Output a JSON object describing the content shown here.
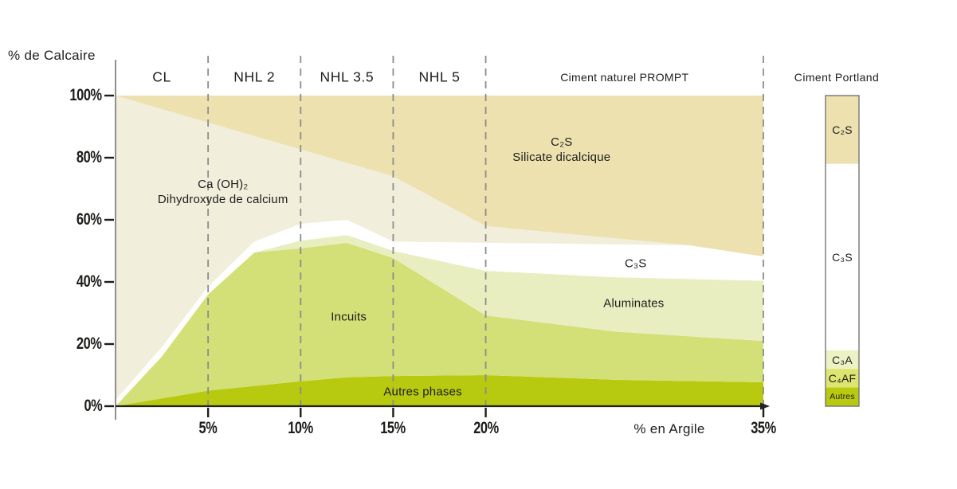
{
  "chart_data": {
    "type": "area",
    "title": "",
    "ylabel": "% de Calcaire",
    "xlabel": "% en Argile",
    "xlim": [
      0,
      35
    ],
    "ylim": [
      0,
      100
    ],
    "grid": "dashed-vertical",
    "legend_position": "none",
    "x_ticks": [
      {
        "value": 5,
        "label": "5%"
      },
      {
        "value": 10,
        "label": "10%"
      },
      {
        "value": 15,
        "label": "15%"
      },
      {
        "value": 20,
        "label": "20%"
      },
      {
        "value": 35,
        "label": "35%"
      }
    ],
    "y_ticks": [
      {
        "value": 100,
        "label": "100%"
      },
      {
        "value": 80,
        "label": "80%"
      },
      {
        "value": 60,
        "label": "60%"
      },
      {
        "value": 40,
        "label": "40%"
      },
      {
        "value": 20,
        "label": "20%"
      },
      {
        "value": 0,
        "label": "0%"
      }
    ],
    "gridlines_x": [
      5,
      10,
      15,
      20,
      35
    ],
    "zones": [
      {
        "label": "CL",
        "from": 0,
        "to": 5,
        "small": false
      },
      {
        "label": "NHL 2",
        "from": 5,
        "to": 10,
        "small": false
      },
      {
        "label": "NHL 3.5",
        "from": 10,
        "to": 15,
        "small": false
      },
      {
        "label": "NHL 5",
        "from": 15,
        "to": 20,
        "small": false
      },
      {
        "label": "Ciment naturel PROMPT",
        "from": 20,
        "to": 35,
        "small": true
      }
    ],
    "boundaries": {
      "base": [
        [
          0,
          0
        ],
        [
          35,
          0
        ]
      ],
      "autres_top": [
        [
          0,
          0
        ],
        [
          5,
          5
        ],
        [
          10,
          8
        ],
        [
          12.5,
          9.3
        ],
        [
          15,
          9.7
        ],
        [
          20,
          10
        ],
        [
          27,
          8.5
        ],
        [
          35,
          7.7
        ]
      ],
      "incuits_top": [
        [
          0,
          0
        ],
        [
          2.5,
          16
        ],
        [
          5,
          36
        ],
        [
          7.5,
          49.5
        ],
        [
          10,
          50.8
        ],
        [
          12.5,
          52.6
        ],
        [
          15,
          47.7
        ],
        [
          20,
          29.2
        ],
        [
          27,
          24
        ],
        [
          35,
          21
        ]
      ],
      "aluminates_top": [
        [
          0,
          0
        ],
        [
          2.5,
          16
        ],
        [
          5,
          36
        ],
        [
          7.5,
          49.5
        ],
        [
          10,
          53.3
        ],
        [
          12.5,
          55.1
        ],
        [
          15,
          50
        ],
        [
          20,
          43.6
        ],
        [
          27,
          41.5
        ],
        [
          35,
          40.4
        ]
      ],
      "c3s_top": [
        [
          0,
          2
        ],
        [
          2.5,
          19
        ],
        [
          5,
          38.5
        ],
        [
          7.5,
          53
        ],
        [
          10,
          58.7
        ],
        [
          12.5,
          60
        ],
        [
          15,
          53
        ],
        [
          20,
          52.6
        ],
        [
          31,
          51.8
        ],
        [
          35,
          48.2
        ]
      ],
      "caoh2_top": [
        [
          0,
          100
        ],
        [
          15,
          74
        ],
        [
          20,
          58
        ],
        [
          31,
          51.8
        ],
        [
          35,
          48.2
        ]
      ],
      "top": [
        [
          0,
          100
        ],
        [
          35,
          100
        ]
      ]
    },
    "layers": [
      {
        "name": "autres-phases",
        "label": "Autres phases",
        "lower": "base",
        "upper": "autres_top",
        "color": "#b8ca10"
      },
      {
        "name": "incuits",
        "label": "Incuits",
        "lower": "autres_top",
        "upper": "incuits_top",
        "color": "#d3e077"
      },
      {
        "name": "aluminates",
        "label": "Aluminates",
        "lower": "incuits_top",
        "upper": "aluminates_top",
        "color": "#e9eec1"
      },
      {
        "name": "c3s",
        "label": "C₃S",
        "lower": "aluminates_top",
        "upper": "c3s_top",
        "color": "#ffffff"
      },
      {
        "name": "ca-oh2",
        "label": "Ca (OH)₂ Dihydroxyde de calcium",
        "lower": "c3s_top",
        "upper": "caoh2_top",
        "color": "#f2eedc"
      },
      {
        "name": "c2s",
        "label": "C₂S Silicate dicalcique",
        "lower": "caoh2_top",
        "upper": "top",
        "color": "#ece1af"
      }
    ],
    "annotations": [
      {
        "name": "ca-oh2",
        "lines": [
          "Ca (OH)₂",
          "Dihydroxyde de calcium"
        ],
        "x": 5.8,
        "y": 69
      },
      {
        "name": "c2s",
        "lines": [
          "C₂S",
          "Silicate dicalcique"
        ],
        "x": 24.1,
        "y": 82.5
      },
      {
        "name": "c3s",
        "lines": [
          "C₃S"
        ],
        "x": 28.1,
        "y": 46
      },
      {
        "name": "aluminates",
        "lines": [
          "Aluminates"
        ],
        "x": 28.0,
        "y": 33
      },
      {
        "name": "incuits",
        "lines": [
          "Incuits"
        ],
        "x": 12.6,
        "y": 28.6
      },
      {
        "name": "autres-phases",
        "lines": [
          "Autres phases"
        ],
        "x": 16.6,
        "y": 4.6
      }
    ]
  },
  "portland": {
    "title": "Ciment Portland",
    "segments": [
      {
        "label": "C₂S",
        "from": 78,
        "to": 100,
        "color": "#ece1af",
        "label_size": 14
      },
      {
        "label": "C₃S",
        "from": 18,
        "to": 78,
        "color": "#ffffff",
        "label_size": 14
      },
      {
        "label": "C₃A",
        "from": 12,
        "to": 18,
        "color": "#edf2c5",
        "label_size": 14
      },
      {
        "label": "C₄AF",
        "from": 6,
        "to": 12,
        "color": "#dce66f",
        "label_size": 14
      },
      {
        "label": "Autres",
        "from": 0,
        "to": 6,
        "color": "#b9c90d",
        "label_size": 10.5
      }
    ]
  },
  "colors": {
    "text": "#1d1d1b",
    "y_axis": "#8f8f8f",
    "x_axis": "#222220",
    "tick": "#1d1d1b",
    "dashed_line": "#8c8c8c",
    "bar_border": "#757575"
  }
}
